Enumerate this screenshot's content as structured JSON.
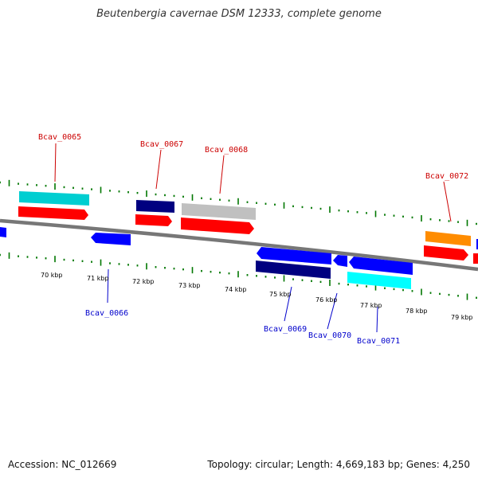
{
  "title": "Beutenbergia cavernae DSM 12333, complete genome",
  "footer": {
    "accession": "Accession: NC_012669",
    "stats": "Topology: circular; Length: 4,669,183 bp; Genes: 4,250"
  },
  "colors": {
    "backbone": "#777777",
    "tick": "#007700",
    "forward_label": "#cc0000",
    "reverse_label": "#0000cc",
    "red": "#ff0000",
    "blue": "#0000ff",
    "navy": "#000080",
    "cyan": "#00ced1",
    "gray": "#c0c0c0",
    "orange": "#ff8c00"
  },
  "scale": {
    "unit": "kbp",
    "positions": [
      "70 kbp",
      "71 kbp",
      "72 kbp",
      "73 kbp",
      "74 kbp",
      "75 kbp",
      "76 kbp",
      "77 kbp",
      "78 kbp",
      "79 kbp"
    ]
  },
  "gene_labels": [
    {
      "name": "Bcav_0065",
      "strand": "forward"
    },
    {
      "name": "Bcav_0066",
      "strand": "reverse"
    },
    {
      "name": "Bcav_0067",
      "strand": "forward"
    },
    {
      "name": "Bcav_0068",
      "strand": "forward"
    },
    {
      "name": "Bcav_0069",
      "strand": "reverse"
    },
    {
      "name": "Bcav_0070",
      "strand": "reverse"
    },
    {
      "name": "Bcav_0071",
      "strand": "reverse"
    },
    {
      "name": "Bcav_0072",
      "strand": "forward"
    }
  ]
}
